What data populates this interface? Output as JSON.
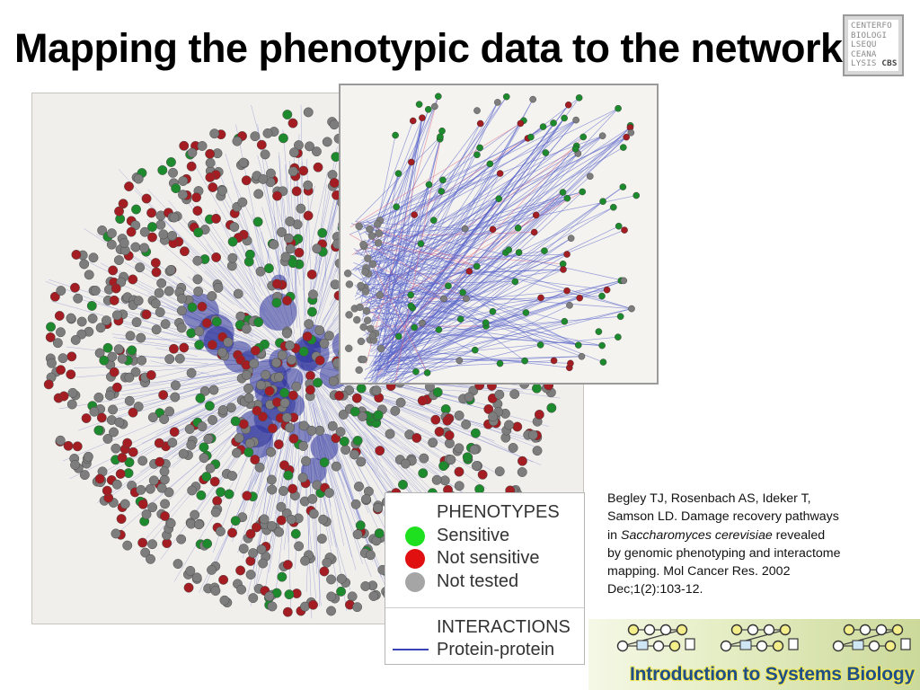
{
  "slide": {
    "title": "Mapping the phenotypic data to the network"
  },
  "logo": {
    "lines": [
      "CENTERFO",
      "BIOLOGI",
      "LSEQU",
      "CEANA",
      "LYSIS"
    ],
    "badge": "CBS"
  },
  "legend": {
    "phenotypes_heading": "PHENOTYPES",
    "items": [
      {
        "label": "Sensitive",
        "color": "#1fe01f"
      },
      {
        "label": "Not sensitive",
        "color": "#e01010"
      },
      {
        "label": "Not tested",
        "color": "#a5a5a5"
      }
    ],
    "interactions_heading": "INTERACTIONS",
    "interaction_label": "Protein-protein",
    "interaction_color": "#3a42b8"
  },
  "citation": {
    "line1": "Begley TJ, Rosenbach AS, Ideker T,",
    "line2": "Samson LD. Damage recovery pathways",
    "line3_pre": "in ",
    "line3_italic": "Saccharomyces cerevisiae",
    "line3_post": " revealed",
    "line4": "by genomic phenotyping and interactome",
    "line5": "mapping. Mol Cancer Res. 2002",
    "line6": "Dec;1(2):103-12."
  },
  "banner": {
    "text": "Introduction to Systems Biology"
  },
  "network_colors": {
    "sensitive": "#1e8a2e",
    "not_sensitive": "#a31d22",
    "not_tested": "#7d7d7d",
    "edge": "#5560c8",
    "edge_alt": "#e0607a"
  }
}
